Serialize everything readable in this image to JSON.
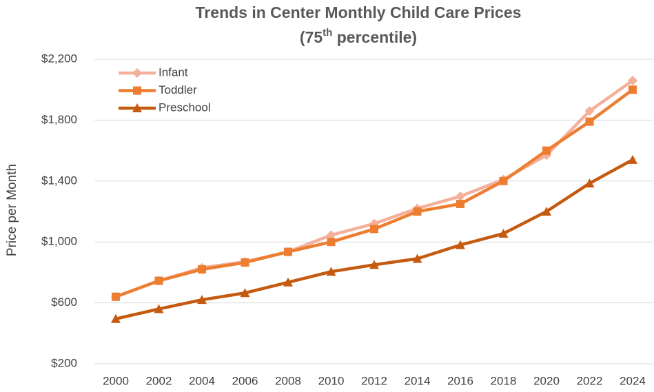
{
  "chart_data": {
    "type": "line",
    "title": "Trends in Center Monthly Child Care Prices",
    "subtitle": [
      "(75",
      "th",
      " percentile)"
    ],
    "y_label": "Price per Month",
    "categories": [
      "2000",
      "2002",
      "2004",
      "2006",
      "2008",
      "2010",
      "2012",
      "2014",
      "2016",
      "2018",
      "2020",
      "2022",
      "2024"
    ],
    "series": [
      {
        "name": "Infant",
        "color": "#f4b09a",
        "marker": "diamond",
        "values": [
          640,
          745,
          830,
          870,
          935,
          1045,
          1120,
          1220,
          1300,
          1410,
          1570,
          1860,
          2060
        ]
      },
      {
        "name": "Toddler",
        "color": "#ed7d31",
        "marker": "square",
        "values": [
          640,
          745,
          820,
          865,
          935,
          1000,
          1085,
          1200,
          1250,
          1400,
          1600,
          1790,
          2000
        ]
      },
      {
        "name": "Preschool",
        "color": "#c55a11",
        "marker": "triangle",
        "values": [
          495,
          560,
          620,
          665,
          735,
          805,
          850,
          890,
          980,
          1055,
          1200,
          1385,
          1540
        ]
      }
    ],
    "ylim": [
      200,
      2200
    ],
    "yticks": [
      {
        "value": 200,
        "label": "$200"
      },
      {
        "value": 600,
        "label": "$600"
      },
      {
        "value": 1000,
        "label": "$1,000"
      },
      {
        "value": 1400,
        "label": "$1,400"
      },
      {
        "value": 1800,
        "label": "$1,800"
      },
      {
        "value": 2200,
        "label": "$2,200"
      }
    ],
    "grid": true,
    "legend": "top-left"
  }
}
